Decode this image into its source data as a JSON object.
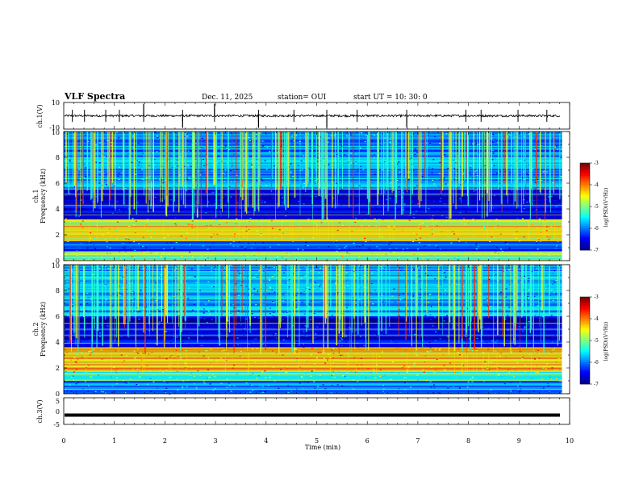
{
  "header": {
    "title": "VLF Spectra",
    "date": "Dec. 11, 2025",
    "station": "station= OUI",
    "start": "start  UT  =   10: 30: 0"
  },
  "colors": {
    "jet": [
      "#00008f",
      "#0000ff",
      "#0080ff",
      "#00ffff",
      "#80ff80",
      "#ffff00",
      "#ff8000",
      "#ff0000",
      "#800000"
    ]
  },
  "chart_data": [
    {
      "type": "line",
      "name": "ch1-waveform",
      "ylabel": "ch.1(V)",
      "ylim": [
        -10,
        10
      ],
      "yticks": [
        10,
        -10
      ],
      "xlim": [
        0,
        10
      ],
      "baseline": 0,
      "spikes_min": [
        0.17,
        0.41,
        0.83,
        1.1,
        1.58,
        2.35,
        2.98,
        3.85,
        4.55,
        5.2,
        5.8,
        6.78,
        7.95,
        8.25,
        8.98,
        9.55
      ]
    },
    {
      "type": "heatmap",
      "name": "ch1-spectrogram",
      "ylabel_line1": "ch.1",
      "ylabel_line2": "Frequency (kHz)",
      "ylim": [
        0,
        10
      ],
      "yticks": [
        0,
        2,
        4,
        6,
        8,
        10
      ],
      "xlim": [
        0,
        9.85
      ],
      "value_range": [
        -7,
        -3
      ],
      "bands_khz": [
        {
          "from": 0.0,
          "to": 0.7,
          "level": -4.8
        },
        {
          "from": 0.7,
          "to": 1.5,
          "level": -6.2
        },
        {
          "from": 1.5,
          "to": 3.3,
          "level": -4.5
        },
        {
          "from": 3.3,
          "to": 5.6,
          "level": -6.7
        },
        {
          "from": 5.6,
          "to": 10.0,
          "level": -5.9
        }
      ],
      "colorbar": {
        "label": "log(PSD)(V²/Hz)",
        "ticks": [
          -3,
          -4,
          -5,
          -6,
          -7
        ]
      }
    },
    {
      "type": "heatmap",
      "name": "ch2-spectrogram",
      "ylabel_line1": "ch.2",
      "ylabel_line2": "Frequency (kHz)",
      "ylim": [
        0,
        10
      ],
      "yticks": [
        0,
        2,
        4,
        6,
        8,
        10
      ],
      "xlim": [
        0,
        9.85
      ],
      "value_range": [
        -7,
        -3
      ],
      "bands_khz": [
        {
          "from": 0.0,
          "to": 1.0,
          "level": -6.0
        },
        {
          "from": 1.0,
          "to": 1.7,
          "level": -5.2
        },
        {
          "from": 1.7,
          "to": 3.6,
          "level": -4.3
        },
        {
          "from": 3.6,
          "to": 6.0,
          "level": -6.6
        },
        {
          "from": 6.0,
          "to": 10.0,
          "level": -5.8
        }
      ],
      "colorbar": {
        "label": "log(PSD)(V²/Hz)",
        "ticks": [
          -3,
          -4,
          -5,
          -6,
          -7
        ]
      }
    },
    {
      "type": "line",
      "name": "ch3-waveform",
      "ylabel": "ch.3(V)",
      "ylim": [
        -5,
        5
      ],
      "yticks": [
        5,
        0,
        -5
      ],
      "xlim": [
        0,
        10
      ],
      "baseline": -1.5
    }
  ],
  "xaxis": {
    "label": "Time  (min)",
    "ticks": [
      0,
      1,
      2,
      3,
      4,
      5,
      6,
      7,
      8,
      9,
      10
    ],
    "range": [
      0,
      10
    ]
  }
}
